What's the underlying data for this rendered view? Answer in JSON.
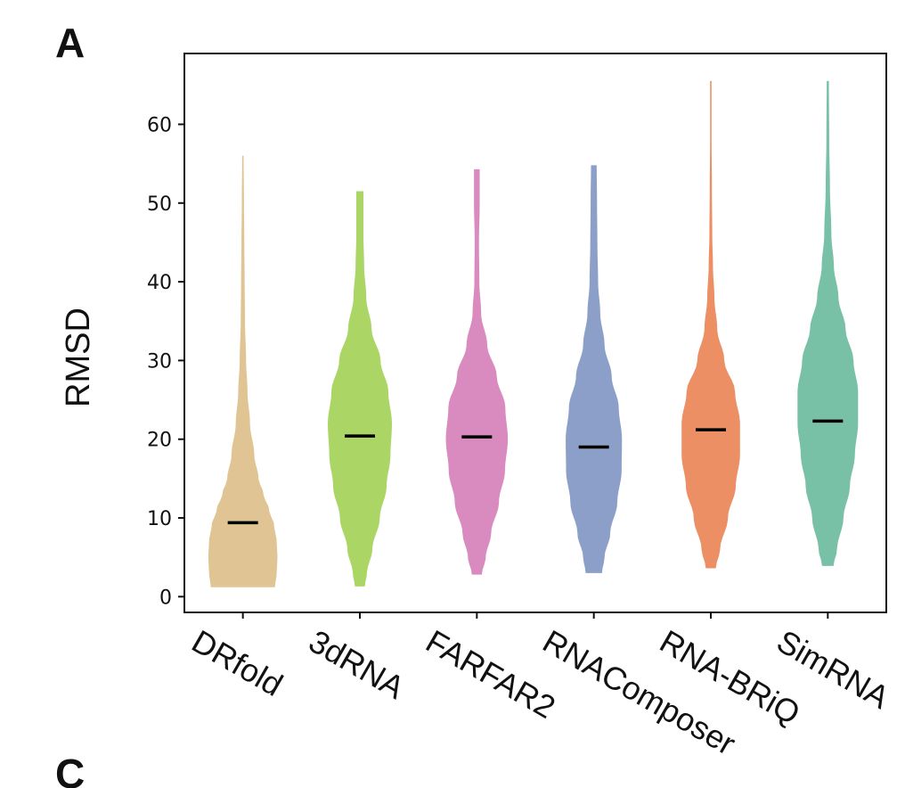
{
  "panel_label": "A",
  "next_panel_label": "C",
  "chart_data": {
    "type": "violin",
    "title": "",
    "xlabel": "",
    "ylabel": "RMSD",
    "ylim": [
      -2,
      69
    ],
    "yticks": [
      0,
      10,
      20,
      30,
      40,
      50,
      60
    ],
    "grid": false,
    "legend": "none",
    "categories": [
      "DRfold",
      "3dRNA",
      "FARFAR2",
      "RNAComposer",
      "RNA-BRiQ",
      "SimRNA"
    ],
    "colors": [
      "#E0C494",
      "#ABD666",
      "#D98BC0",
      "#8C9FC9",
      "#EC8F64",
      "#79C1A6"
    ],
    "median_color": "#000000",
    "series": [
      {
        "category": "DRfold",
        "min": 1.2,
        "max": 56,
        "median": 9.4,
        "density": [
          [
            1.2,
            0.9
          ],
          [
            3,
            0.95
          ],
          [
            5,
            0.97
          ],
          [
            7,
            0.95
          ],
          [
            9,
            0.88
          ],
          [
            11,
            0.74
          ],
          [
            13,
            0.58
          ],
          [
            15,
            0.44
          ],
          [
            18,
            0.32
          ],
          [
            22,
            0.2
          ],
          [
            26,
            0.13
          ],
          [
            30,
            0.09
          ],
          [
            35,
            0.06
          ],
          [
            40,
            0.05
          ],
          [
            45,
            0.04
          ],
          [
            50,
            0.03
          ],
          [
            56,
            0.02
          ]
        ]
      },
      {
        "category": "3dRNA",
        "min": 1.3,
        "max": 51.5,
        "median": 20.4,
        "density": [
          [
            1.3,
            0.14
          ],
          [
            3,
            0.2
          ],
          [
            6,
            0.35
          ],
          [
            10,
            0.56
          ],
          [
            14,
            0.75
          ],
          [
            18,
            0.86
          ],
          [
            22,
            0.9
          ],
          [
            26,
            0.8
          ],
          [
            30,
            0.58
          ],
          [
            34,
            0.33
          ],
          [
            38,
            0.18
          ],
          [
            42,
            0.12
          ],
          [
            46,
            0.1
          ],
          [
            50,
            0.1
          ],
          [
            51.5,
            0.1
          ]
        ]
      },
      {
        "category": "FARFAR2",
        "min": 2.8,
        "max": 54.3,
        "median": 20.3,
        "density": [
          [
            2.8,
            0.14
          ],
          [
            5,
            0.25
          ],
          [
            8,
            0.4
          ],
          [
            12,
            0.62
          ],
          [
            16,
            0.79
          ],
          [
            20,
            0.87
          ],
          [
            24,
            0.8
          ],
          [
            28,
            0.56
          ],
          [
            32,
            0.29
          ],
          [
            36,
            0.12
          ],
          [
            40,
            0.07
          ],
          [
            45,
            0.06
          ],
          [
            50,
            0.08
          ],
          [
            54.3,
            0.08
          ]
        ]
      },
      {
        "category": "RNAComposer",
        "min": 3,
        "max": 54.8,
        "median": 19,
        "density": [
          [
            3,
            0.23
          ],
          [
            5,
            0.3
          ],
          [
            8,
            0.46
          ],
          [
            12,
            0.66
          ],
          [
            16,
            0.78
          ],
          [
            20,
            0.79
          ],
          [
            24,
            0.7
          ],
          [
            28,
            0.5
          ],
          [
            32,
            0.3
          ],
          [
            36,
            0.18
          ],
          [
            40,
            0.12
          ],
          [
            45,
            0.1
          ],
          [
            50,
            0.09
          ],
          [
            54.8,
            0.08
          ]
        ]
      },
      {
        "category": "RNA-BRiQ",
        "min": 3.6,
        "max": 65.5,
        "median": 21.2,
        "density": [
          [
            3.6,
            0.14
          ],
          [
            6,
            0.26
          ],
          [
            10,
            0.48
          ],
          [
            14,
            0.7
          ],
          [
            18,
            0.82
          ],
          [
            22,
            0.82
          ],
          [
            26,
            0.68
          ],
          [
            30,
            0.38
          ],
          [
            34,
            0.18
          ],
          [
            38,
            0.1
          ],
          [
            42,
            0.06
          ],
          [
            46,
            0.04
          ],
          [
            52,
            0.03
          ],
          [
            58,
            0.02
          ],
          [
            65.5,
            0.02
          ]
        ]
      },
      {
        "category": "SimRNA",
        "min": 3.9,
        "max": 65.5,
        "median": 22.3,
        "density": [
          [
            3.9,
            0.16
          ],
          [
            6,
            0.26
          ],
          [
            10,
            0.44
          ],
          [
            14,
            0.62
          ],
          [
            18,
            0.76
          ],
          [
            22,
            0.85
          ],
          [
            26,
            0.85
          ],
          [
            30,
            0.72
          ],
          [
            34,
            0.5
          ],
          [
            38,
            0.3
          ],
          [
            42,
            0.17
          ],
          [
            46,
            0.1
          ],
          [
            52,
            0.06
          ],
          [
            58,
            0.04
          ],
          [
            65.5,
            0.03
          ]
        ]
      }
    ]
  }
}
